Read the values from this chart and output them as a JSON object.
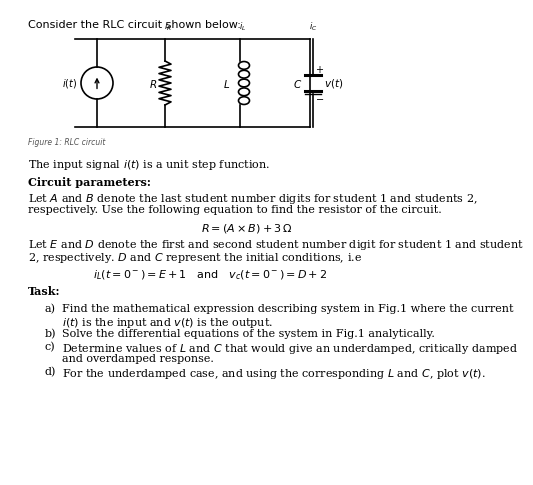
{
  "bg_color": "#ffffff",
  "text_color": "#000000",
  "title": "Consider the RLC circuit shown below:",
  "figure_caption": "Figure 1: RLC circuit",
  "paragraph1": "The input signal $i(t)$ is a unit step function.",
  "section_header": "Circuit parameters:",
  "para2_line1": "Let $A$ and $B$ denote the last student number digits for student 1 and students 2,",
  "para2_line2": "respectively. Use the following equation to find the resistor of the circuit.",
  "equation1": "$R = (A \\times B) + 3\\,\\Omega$",
  "para3_line1": "Let $E$ and $D$ denote the first and second student number digit for student 1 and student",
  "para3_line2": "2, respectively. $D$ and $C$ represent the initial conditions, i.e",
  "equation2": "$i_L(t = 0^-) = E + 1 \\quad \\text{and} \\quad v_c(t = 0^-) = D + 2$",
  "task_header": "Task:",
  "task_a1": "Find the mathematical expression describing system in Fig.1 where the current",
  "task_a2": "$i(t)$ is the input and $v(t)$ is the output.",
  "task_b": "Solve the differential equations of the system in Fig.1 analytically.",
  "task_c1": "Determine values of $L$ and $C$ that would give an underdamped, critically damped",
  "task_c2": "and overdamped response.",
  "task_d": "For the underdamped case, and using the corresponding $L$ and $C$, plot $v(t)$."
}
